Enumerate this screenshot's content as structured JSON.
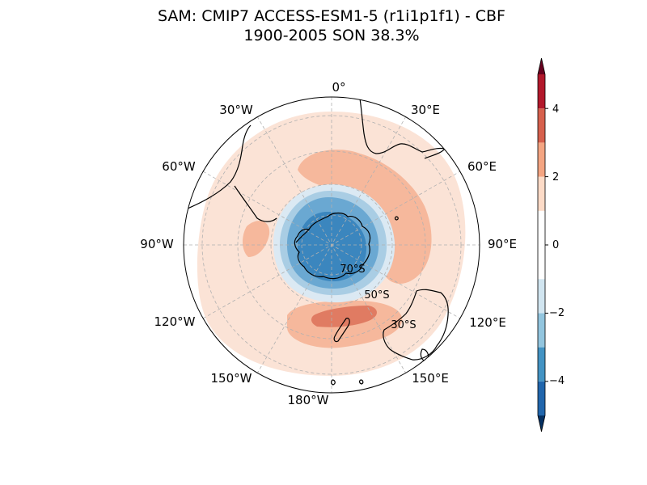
{
  "title": {
    "line1": "SAM: CMIP7 ACCESS-ESM1-5 (r1i1p1f1) - CBF",
    "line2": "1900-2005 SON 38.3%"
  },
  "map": {
    "projection": "south-polar-stereographic",
    "longitude_labels": [
      "0°",
      "30°E",
      "60°E",
      "90°E",
      "120°E",
      "150°E",
      "180°W",
      "150°W",
      "120°W",
      "90°W",
      "60°W",
      "30°W"
    ],
    "latitude_labels": [
      "70°S",
      "50°S",
      "30°S"
    ],
    "gridlines": true,
    "coastline_color": "#000000"
  },
  "colorbar": {
    "range": [
      -5,
      5
    ],
    "boundaries": [
      -5,
      -4,
      -3,
      -2,
      -1,
      1,
      2,
      3,
      4,
      5
    ],
    "colors": [
      "#053061",
      "#2166ac",
      "#4393c3",
      "#92c5de",
      "#d1e5f0",
      "#ffffff",
      "#fddbc7",
      "#f4a582",
      "#d6604d",
      "#b2182b",
      "#67001f"
    ],
    "tick_labels": [
      "4",
      "2",
      "0",
      "−2",
      "−4"
    ],
    "extend": "both"
  }
}
